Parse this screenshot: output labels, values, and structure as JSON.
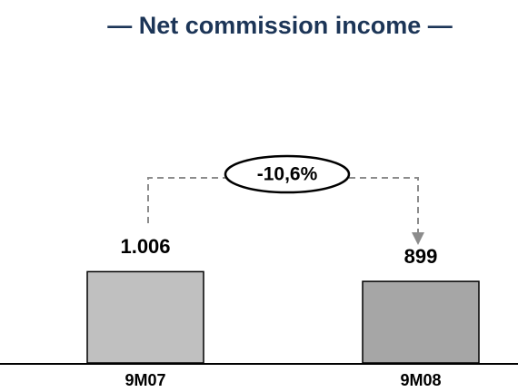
{
  "chart_data": {
    "type": "bar",
    "title": "— Net commission income —",
    "categories": [
      "9M07",
      "9M08"
    ],
    "values": [
      1006,
      899
    ],
    "value_labels": [
      "1.006",
      "899"
    ],
    "colors": [
      "#c0c0c0",
      "#a6a6a6"
    ],
    "annotation": "-10,6%"
  }
}
